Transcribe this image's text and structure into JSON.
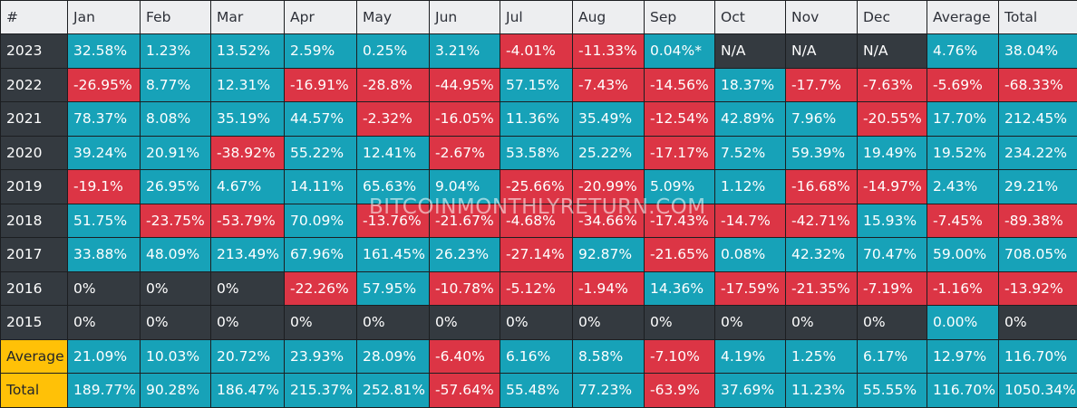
{
  "colors": {
    "positive": "#17a2b8",
    "negative": "#dc3545",
    "neutral": "#343a40",
    "highlight": "#ffc107",
    "header_bg": "#edeef0"
  },
  "headers": [
    "#",
    "Jan",
    "Feb",
    "Mar",
    "Apr",
    "May",
    "Jun",
    "Jul",
    "Aug",
    "Sep",
    "Oct",
    "Nov",
    "Dec",
    "Average",
    "Total"
  ],
  "rows": [
    {
      "label": "2023",
      "cells": [
        "32.58%",
        "1.23%",
        "13.52%",
        "2.59%",
        "0.25%",
        "3.21%",
        "-4.01%",
        "-11.33%",
        "0.04%*",
        "N/A",
        "N/A",
        "N/A",
        "4.76%",
        "38.04%"
      ]
    },
    {
      "label": "2022",
      "cells": [
        "-26.95%",
        "8.77%",
        "12.31%",
        "-16.91%",
        "-28.8%",
        "-44.95%",
        "57.15%",
        "-7.43%",
        "-14.56%",
        "18.37%",
        "-17.7%",
        "-7.63%",
        "-5.69%",
        "-68.33%"
      ]
    },
    {
      "label": "2021",
      "cells": [
        "78.37%",
        "8.08%",
        "35.19%",
        "44.57%",
        "-2.32%",
        "-16.05%",
        "11.36%",
        "35.49%",
        "-12.54%",
        "42.89%",
        "7.96%",
        "-20.55%",
        "17.70%",
        "212.45%"
      ]
    },
    {
      "label": "2020",
      "cells": [
        "39.24%",
        "20.91%",
        "-38.92%",
        "55.22%",
        "12.41%",
        "-2.67%",
        "53.58%",
        "25.22%",
        "-17.17%",
        "7.52%",
        "59.39%",
        "19.49%",
        "19.52%",
        "234.22%"
      ]
    },
    {
      "label": "2019",
      "cells": [
        "-19.1%",
        "26.95%",
        "4.67%",
        "14.11%",
        "65.63%",
        "9.04%",
        "-25.66%",
        "-20.99%",
        "5.09%",
        "1.12%",
        "-16.68%",
        "-14.97%",
        "2.43%",
        "29.21%"
      ]
    },
    {
      "label": "2018",
      "cells": [
        "51.75%",
        "-23.75%",
        "-53.79%",
        "70.09%",
        "-13.76%",
        "-21.67%",
        "-4.68%",
        "-34.66%",
        "-17.43%",
        "-14.7%",
        "-42.71%",
        "15.93%",
        "-7.45%",
        "-89.38%"
      ]
    },
    {
      "label": "2017",
      "cells": [
        "33.88%",
        "48.09%",
        "213.49%",
        "67.96%",
        "161.45%",
        "26.23%",
        "-27.14%",
        "92.87%",
        "-21.65%",
        "0.08%",
        "42.32%",
        "70.47%",
        "59.00%",
        "708.05%"
      ]
    },
    {
      "label": "2016",
      "cells": [
        "0%",
        "0%",
        "0%",
        "-22.26%",
        "57.95%",
        "-10.78%",
        "-5.12%",
        "-1.94%",
        "14.36%",
        "-17.59%",
        "-21.35%",
        "-7.19%",
        "-1.16%",
        "-13.92%"
      ]
    },
    {
      "label": "2015",
      "cells": [
        "0%",
        "0%",
        "0%",
        "0%",
        "0%",
        "0%",
        "0%",
        "0%",
        "0%",
        "0%",
        "0%",
        "0%",
        "0.00%",
        "0%"
      ]
    },
    {
      "label": "Average",
      "cells": [
        "21.09%",
        "10.03%",
        "20.72%",
        "23.93%",
        "28.09%",
        "-6.40%",
        "6.16%",
        "8.58%",
        "-7.10%",
        "4.19%",
        "1.25%",
        "6.17%",
        "12.97%",
        "116.70%"
      ]
    },
    {
      "label": "Total",
      "cells": [
        "189.77%",
        "90.28%",
        "186.47%",
        "215.37%",
        "252.81%",
        "-57.64%",
        "55.48%",
        "77.23%",
        "-63.9%",
        "37.69%",
        "11.23%",
        "55.55%",
        "116.70%",
        "1050.34%"
      ]
    }
  ],
  "watermark": "BITCOINMONTHLYRETURN.COM"
}
